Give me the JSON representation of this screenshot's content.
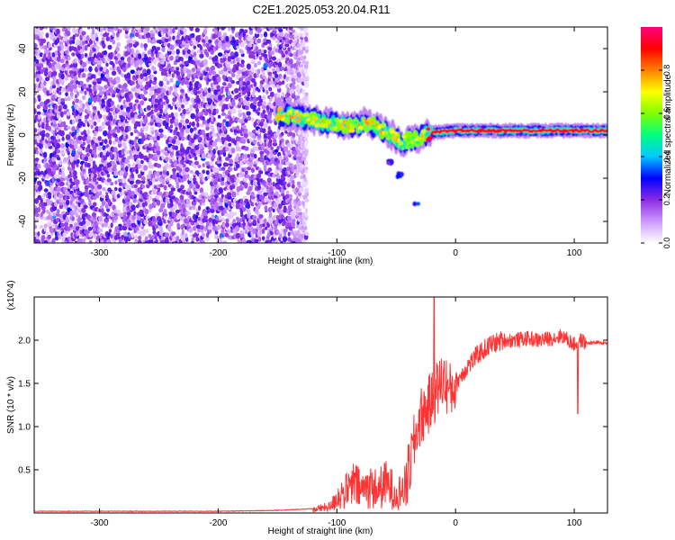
{
  "title": "C2E1.2025.053.20.04.R11",
  "chart_data": [
    {
      "type": "heatmap",
      "title": "C2E1.2025.053.20.04.R11",
      "xlabel": "Height of straight line (km)",
      "ylabel": "Frequency (Hz)",
      "xlim": [
        -355,
        128
      ],
      "ylim": [
        -50,
        50
      ],
      "x_ticks": [
        -300,
        -200,
        -100,
        0,
        100
      ],
      "x_tick_labels": [
        "-300",
        "-200",
        "-100",
        "0",
        "100"
      ],
      "y_ticks": [
        -40,
        -20,
        0,
        20,
        40
      ],
      "y_tick_labels": [
        "-40",
        "-20",
        "0",
        "20",
        "40"
      ],
      "colorbar": {
        "label": "Normalized spectral amplitude",
        "range": [
          0,
          1
        ],
        "ticks": [
          0.0,
          0.2,
          0.4,
          0.6,
          0.8
        ],
        "tick_labels": [
          "0.0",
          "0.2",
          "0.4",
          "0.6",
          "0.8"
        ],
        "colors": [
          "#ffffff",
          "#cc99ff",
          "#8a2be2",
          "#0000ff",
          "#00c8ff",
          "#00ff80",
          "#80ff00",
          "#ffff00",
          "#ff8000",
          "#ff0000",
          "#ff0080"
        ]
      },
      "noise_region": {
        "x_range": [
          -355,
          -125
        ],
        "typical_amplitude": 0.15
      },
      "signal_track": [
        {
          "x": -150,
          "freq": 10
        },
        {
          "x": -130,
          "freq": 8
        },
        {
          "x": -110,
          "freq": 6
        },
        {
          "x": -90,
          "freq": 4
        },
        {
          "x": -75,
          "freq": 6
        },
        {
          "x": -60,
          "freq": 2
        },
        {
          "x": -45,
          "freq": -3
        },
        {
          "x": -35,
          "freq": -2
        },
        {
          "x": -20,
          "freq": 1
        },
        {
          "x": 0,
          "freq": 2
        },
        {
          "x": 20,
          "freq": 2
        },
        {
          "x": 60,
          "freq": 2
        },
        {
          "x": 90,
          "freq": 2
        },
        {
          "x": 128,
          "freq": 2
        }
      ],
      "side_branch": [
        {
          "x": -55,
          "freq": -12
        },
        {
          "x": -47,
          "freq": -18
        },
        {
          "x": -33,
          "freq": -31
        }
      ]
    },
    {
      "type": "line",
      "xlabel": "Height of straight line (km)",
      "ylabel": "SNR (10 * v/v)",
      "y_exponent_label": "(x10^4)",
      "xlim": [
        -355,
        128
      ],
      "ylim": [
        0,
        2.5
      ],
      "x_ticks": [
        -300,
        -200,
        -100,
        0,
        100
      ],
      "x_tick_labels": [
        "-300",
        "-200",
        "-100",
        "0",
        "100"
      ],
      "y_ticks": [
        0.5,
        1.0,
        1.5,
        2.0
      ],
      "y_tick_labels": [
        "0.5",
        "1.0",
        "1.5",
        "2.0"
      ],
      "series": [
        {
          "color": "#ff3333",
          "x": [
            -355,
            -300,
            -200,
            -150,
            -120,
            -105,
            -100,
            -95,
            -90,
            -85,
            -80,
            -75,
            -70,
            -65,
            -60,
            -55,
            -50,
            -45,
            -40,
            -35,
            -30,
            -25,
            -20,
            -15,
            -10,
            -5,
            0,
            10,
            20,
            30,
            40,
            50,
            60,
            70,
            80,
            90,
            95,
            100,
            105,
            110,
            120,
            128
          ],
          "y": [
            0.02,
            0.02,
            0.02,
            0.03,
            0.05,
            0.1,
            0.25,
            0.3,
            0.35,
            0.45,
            0.35,
            0.4,
            0.4,
            0.35,
            0.45,
            0.4,
            0.3,
            0.35,
            0.45,
            0.8,
            1.1,
            1.2,
            1.3,
            1.45,
            1.55,
            1.4,
            1.5,
            1.7,
            1.85,
            1.95,
            2.0,
            2.0,
            2.02,
            2.0,
            2.02,
            2.05,
            2.0,
            1.95,
            2.0,
            1.97,
            1.97,
            1.97
          ]
        }
      ],
      "peaks": [
        {
          "x": -18,
          "y": 2.5
        },
        {
          "x": 103,
          "y": 1.15
        }
      ]
    }
  ]
}
